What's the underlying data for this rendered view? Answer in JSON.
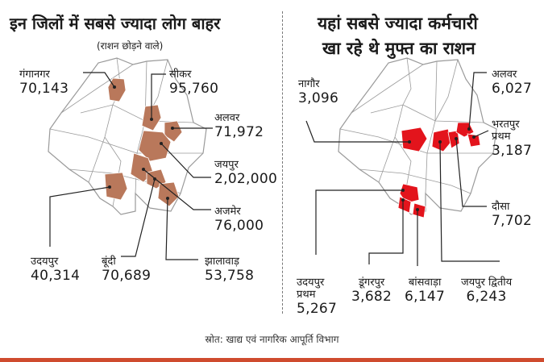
{
  "colors": {
    "map_fill": "#ffffff",
    "map_stroke": "#9a9a9a",
    "left_highlight": "#b9785b",
    "right_highlight": "#e3141c",
    "leader": "#222222",
    "accent_bar": "#cf4b2e"
  },
  "left_panel": {
    "title": "इन जिलों में सबसे ज्यादा लोग बाहर",
    "subtitle": "(राशन छोड़ने वाले)",
    "districts": [
      {
        "name": "गंगानगर",
        "value": "70,143"
      },
      {
        "name": "सीकर",
        "value": "95,760"
      },
      {
        "name": "अलवर",
        "value": "71,972"
      },
      {
        "name": "जयपुर",
        "value": "2,02,000"
      },
      {
        "name": "अजमेर",
        "value": "76,000"
      },
      {
        "name": "उदयपुर",
        "value": "40,314"
      },
      {
        "name": "बूंदी",
        "value": "70,689"
      },
      {
        "name": "झालावाड़",
        "value": "53,758"
      }
    ]
  },
  "right_panel": {
    "title_line1": "यहां सबसे ज्यादा कर्मचारी",
    "title_line2": "खा रहे थे मुफ्त का राशन",
    "districts": [
      {
        "name": "नागौर",
        "value": "3,096"
      },
      {
        "name": "अलवर",
        "value": "6,027"
      },
      {
        "name": "भरतपुर",
        "name2": "प्रथम",
        "value": "3,187"
      },
      {
        "name": "दौसा",
        "value": "7,702"
      },
      {
        "name": "उदयपुर",
        "name2": "प्रथम",
        "value": "5,267"
      },
      {
        "name": "डूंगरपुर",
        "value": "3,682"
      },
      {
        "name": "बांसवाड़ा",
        "value": "6,147"
      },
      {
        "name": "जयपुर द्वितीय",
        "value": "6,243"
      }
    ]
  },
  "source": "स्रोत: खाद्य एवं नागरिक आपूर्ति विभाग"
}
